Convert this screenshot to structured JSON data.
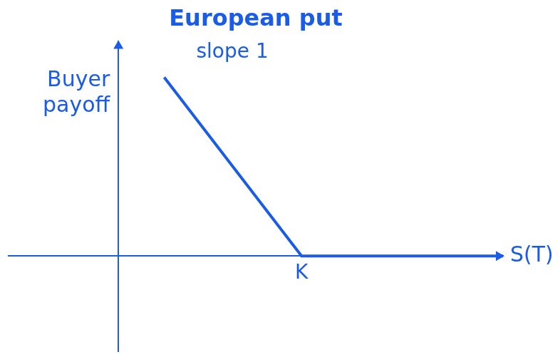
{
  "chart_data": {
    "type": "line",
    "title": "European put",
    "y_label": "Buyer payoff",
    "x_label": "S(T)",
    "annotations": [
      "slope 1"
    ],
    "x": [
      2.5,
      10,
      21
    ],
    "values": [
      7.5,
      0,
      0
    ],
    "color": "#1a5ce6",
    "xlim": [
      -6,
      21
    ],
    "ylim": [
      -4,
      9
    ],
    "xticks": [
      {
        "value": 10,
        "label": "K"
      }
    ],
    "yticks": [],
    "grid": false,
    "tick_labels": "x"
  }
}
